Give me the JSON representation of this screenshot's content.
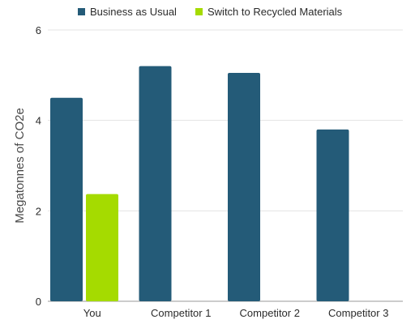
{
  "chart_data": {
    "type": "bar",
    "title": "",
    "xlabel": "",
    "ylabel": "Megatonnes of CO2e",
    "categories": [
      "You",
      "Competitor 1",
      "Competitor 2",
      "Competitor 3"
    ],
    "series": [
      {
        "name": "Business as Usual",
        "color": "#245b78",
        "values": [
          4.5,
          5.2,
          5.05,
          3.8
        ]
      },
      {
        "name": "Switch to Recycled Materials",
        "color": "#a5db00",
        "values": [
          2.37,
          null,
          null,
          null
        ]
      }
    ],
    "ylim": [
      0,
      6
    ],
    "yticks": [
      0,
      2,
      4,
      6
    ],
    "grid": true,
    "legend_position": "top"
  }
}
